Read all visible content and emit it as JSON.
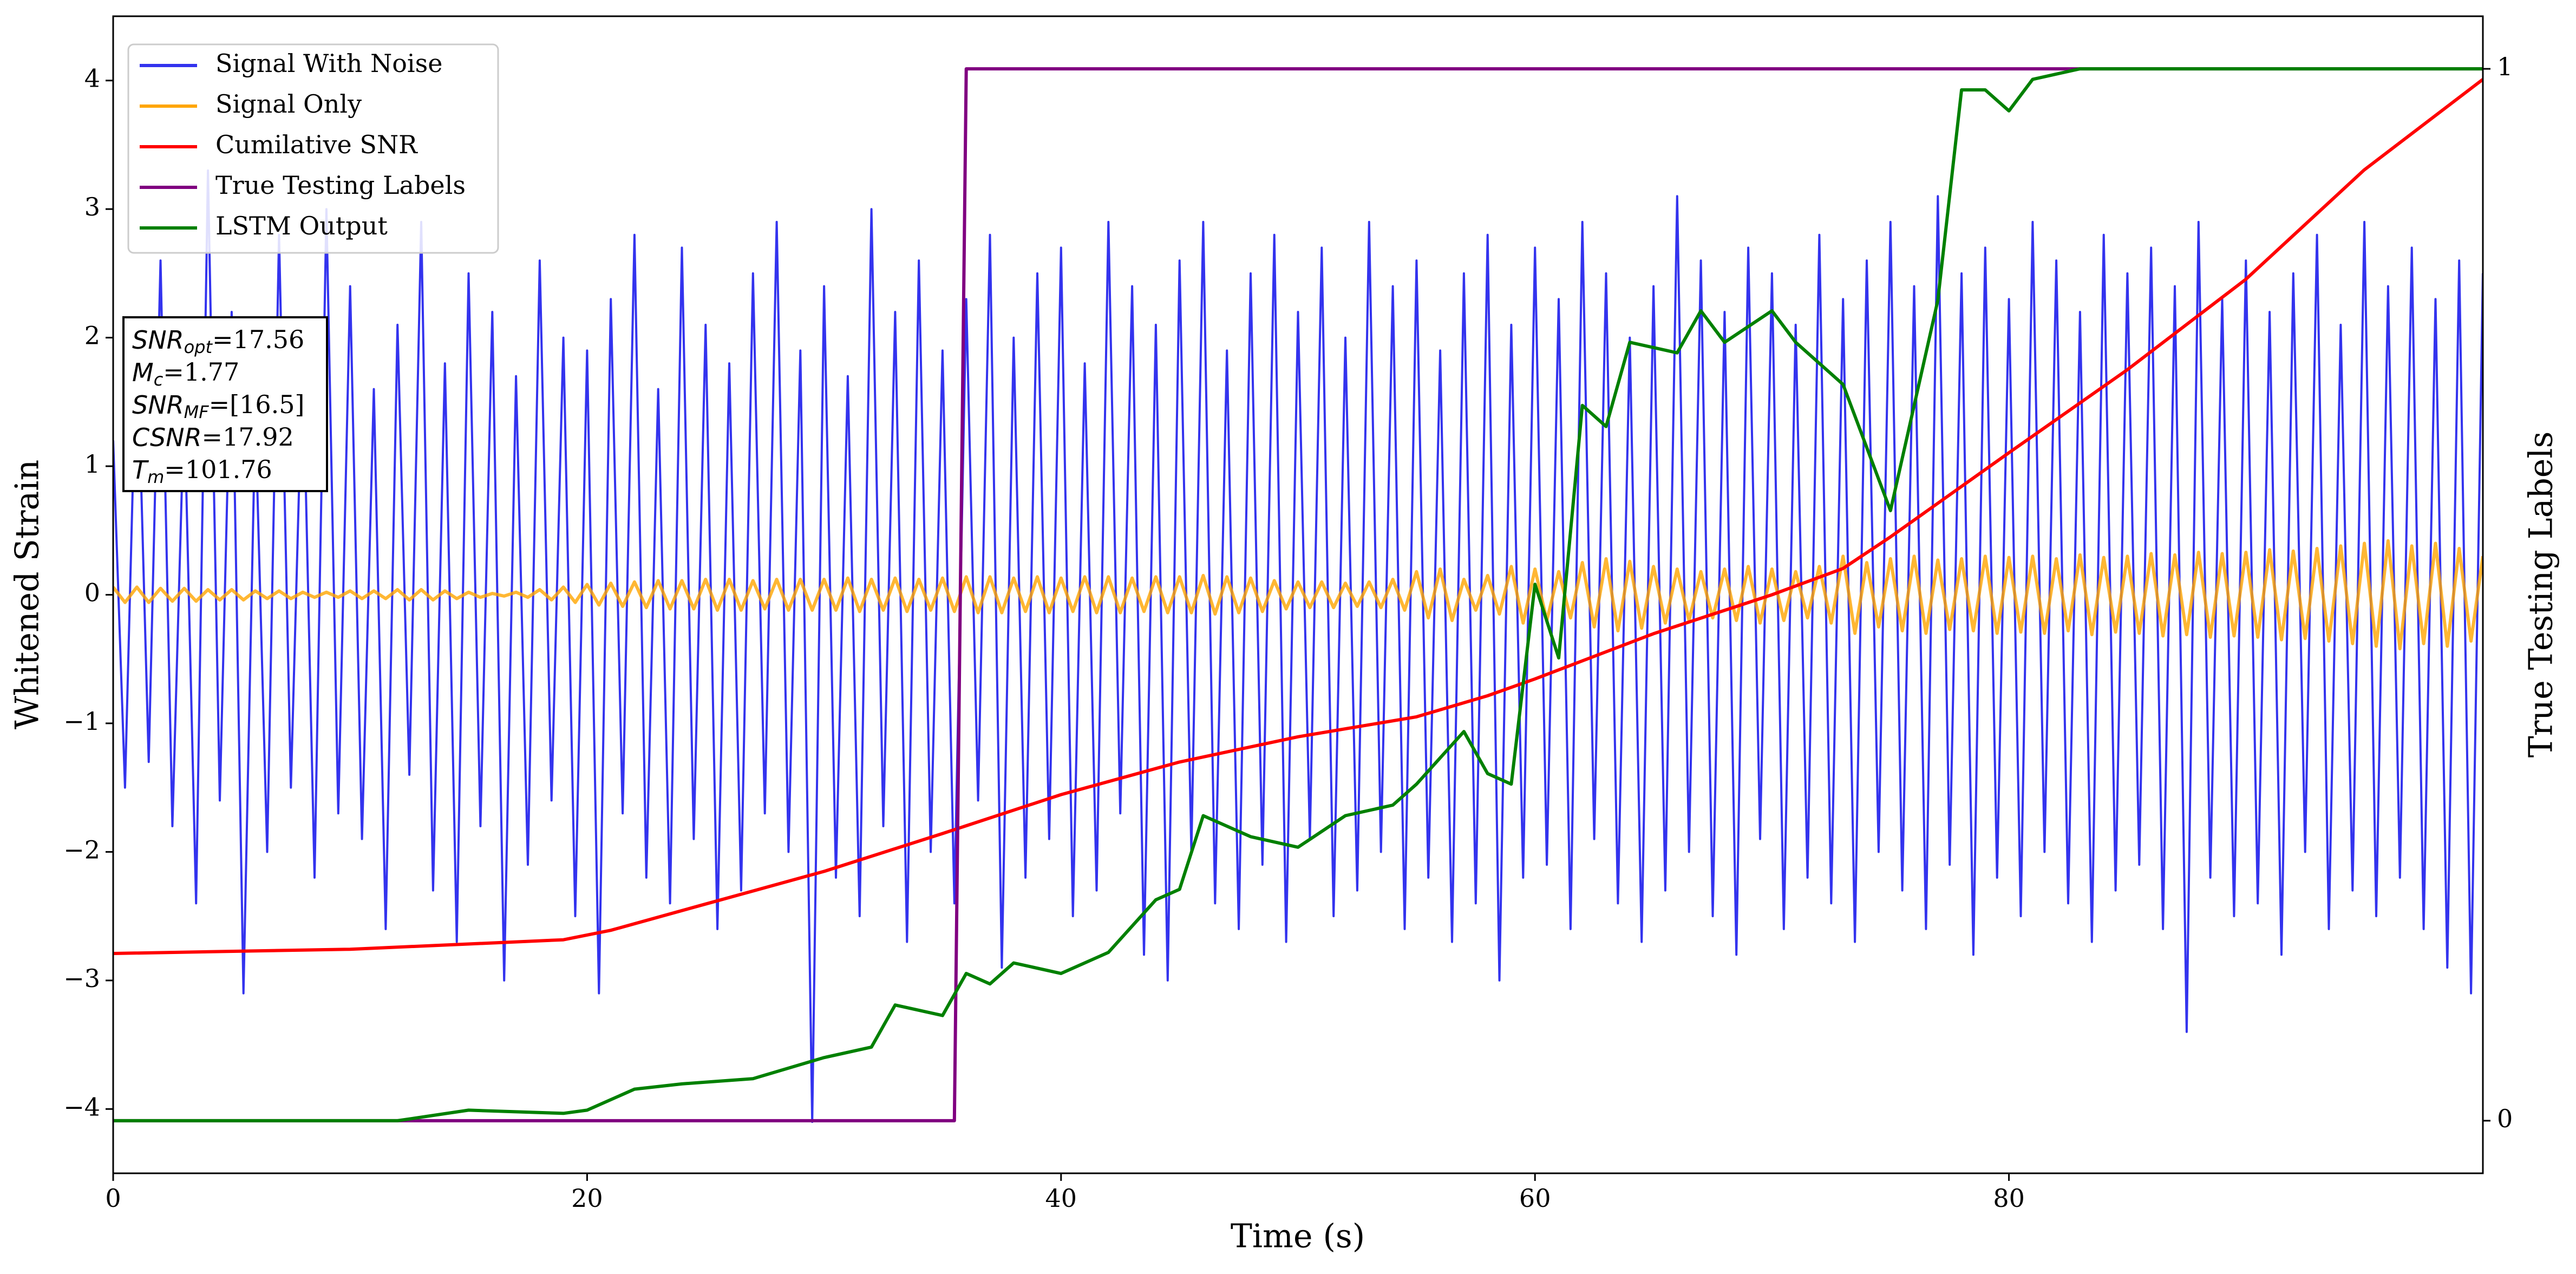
{
  "chart_data": {
    "type": "line",
    "xlabel": "Time (s)",
    "ylabel": "Whitened Strain",
    "y2label": "True Testing Labels",
    "xlim": [
      0,
      100
    ],
    "ylim": [
      -4.5,
      4.5
    ],
    "y2lim": [
      -0.05,
      1.05
    ],
    "xticks": [
      0,
      20,
      40,
      60,
      80
    ],
    "yticks": [
      {
        "value": -4,
        "label": "−4"
      },
      {
        "value": -3,
        "label": "−3"
      },
      {
        "value": -2,
        "label": "−2"
      },
      {
        "value": -1,
        "label": "−1"
      },
      0,
      1,
      2,
      3,
      4
    ],
    "y2ticks": [
      0,
      1
    ],
    "legend": "upper left",
    "x": [
      0,
      0.5,
      1,
      1.5,
      2,
      2.5,
      3,
      3.5,
      4,
      4.5,
      5,
      5.5,
      6,
      6.5,
      7,
      7.5,
      8,
      8.5,
      9,
      9.5,
      10,
      10.5,
      11,
      11.5,
      12,
      12.5,
      13,
      13.5,
      14,
      14.5,
      15,
      15.5,
      16,
      16.5,
      17,
      17.5,
      18,
      18.5,
      19,
      19.5,
      20,
      20.5,
      21,
      21.5,
      22,
      22.5,
      23,
      23.5,
      24,
      24.5,
      25,
      25.5,
      26,
      26.5,
      27,
      27.5,
      28,
      28.5,
      29,
      29.5,
      30,
      30.5,
      31,
      31.5,
      32,
      32.5,
      33,
      33.5,
      34,
      34.5,
      35,
      35.5,
      36,
      36.5,
      37,
      37.5,
      38,
      38.5,
      39,
      39.5,
      40,
      40.5,
      41,
      41.5,
      42,
      42.5,
      43,
      43.5,
      44,
      44.5,
      45,
      45.5,
      46,
      46.5,
      47,
      47.5,
      48,
      48.5,
      49,
      49.5,
      50,
      50.5,
      51,
      51.5,
      52,
      52.5,
      53,
      53.5,
      54,
      54.5,
      55,
      55.5,
      56,
      56.5,
      57,
      57.5,
      58,
      58.5,
      59,
      59.5,
      60,
      60.5,
      61,
      61.5,
      62,
      62.5,
      63,
      63.5,
      64,
      64.5,
      65,
      65.5,
      66,
      66.5,
      67,
      67.5,
      68,
      68.5,
      69,
      69.5,
      70,
      70.5,
      71,
      71.5,
      72,
      72.5,
      73,
      73.5,
      74,
      74.5,
      75,
      75.5,
      76,
      76.5,
      77,
      77.5,
      78,
      78.5,
      79,
      79.5,
      80,
      80.5,
      81,
      81.5,
      82,
      82.5,
      83,
      83.5,
      84,
      84.5,
      85,
      85.5,
      86,
      86.5,
      87,
      87.5,
      88,
      88.5,
      89,
      89.5,
      90,
      90.5,
      91,
      91.5,
      92,
      92.5,
      93,
      93.5,
      94,
      94.5,
      95,
      95.5,
      96,
      96.5,
      97,
      97.5,
      98,
      98.5,
      99,
      99.5,
      100
    ],
    "series": [
      {
        "name": "Signal With Noise",
        "color": "#3333ee",
        "values": [
          1.2,
          -1.5,
          2.1,
          -1.3,
          2.6,
          -1.8,
          1.5,
          -2.4,
          3.3,
          -1.6,
          2.2,
          -3.1,
          1.4,
          -2.0,
          2.8,
          -1.5,
          1.9,
          -2.2,
          3.0,
          -1.7,
          2.4,
          -1.9,
          1.6,
          -2.6,
          2.1,
          -1.4,
          2.9,
          -2.3,
          1.8,
          -2.7,
          2.5,
          -1.8,
          2.2,
          -3.0,
          1.7,
          -2.1,
          2.6,
          -1.6,
          2.0,
          -2.5,
          1.9,
          -3.1,
          2.3,
          -1.7,
          2.8,
          -2.2,
          1.6,
          -2.4,
          2.7,
          -1.9,
          2.1,
          -2.6,
          1.8,
          -2.3,
          2.5,
          -1.7,
          2.9,
          -2.0,
          1.9,
          -4.1,
          2.4,
          -2.2,
          1.7,
          -2.5,
          3.0,
          -1.8,
          2.2,
          -2.7,
          2.6,
          -2.0,
          1.9,
          -2.4,
          2.3,
          -1.6,
          2.8,
          -2.9,
          2.0,
          -2.2,
          2.5,
          -1.9,
          2.7,
          -2.5,
          1.8,
          -2.3,
          2.9,
          -1.7,
          2.4,
          -2.8,
          2.1,
          -3.0,
          2.6,
          -2.0,
          2.9,
          -2.4,
          1.9,
          -2.6,
          2.5,
          -2.1,
          2.8,
          -2.7,
          2.2,
          -1.9,
          2.7,
          -2.5,
          2.0,
          -2.3,
          2.9,
          -2.0,
          2.4,
          -2.6,
          2.6,
          -2.2,
          1.9,
          -2.7,
          2.5,
          -2.4,
          2.8,
          -3.0,
          2.1,
          -2.2,
          2.7,
          -2.1,
          2.3,
          -2.6,
          2.9,
          -1.9,
          2.5,
          -2.4,
          2.0,
          -2.7,
          2.4,
          -2.3,
          3.1,
          -2.0,
          2.6,
          -2.5,
          2.2,
          -2.8,
          2.7,
          -1.9,
          2.5,
          -2.6,
          2.1,
          -2.2,
          2.8,
          -2.4,
          2.3,
          -2.7,
          2.6,
          -2.0,
          2.9,
          -2.3,
          2.4,
          -2.6,
          3.1,
          -2.1,
          2.5,
          -2.8,
          2.7,
          -2.2,
          2.3,
          -2.5,
          2.9,
          -2.0,
          2.6,
          -2.4,
          2.2,
          -2.7,
          2.8,
          -2.3,
          2.5,
          -2.1,
          2.7,
          -2.6,
          2.4,
          -3.4,
          2.9,
          -2.2,
          2.3,
          -2.5,
          2.6,
          -2.4,
          2.2,
          -2.8,
          2.5,
          -2.0,
          2.8,
          -2.6,
          2.1,
          -2.3,
          2.9,
          -2.5,
          2.4,
          -2.2,
          2.7,
          -2.6,
          2.3,
          -2.9,
          2.6,
          -3.1,
          2.5
        ]
      },
      {
        "name": "Signal Only",
        "color": "#ffa500",
        "values": [
          0.06,
          -0.06,
          0.06,
          -0.06,
          0.05,
          -0.05,
          0.05,
          -0.05,
          0.04,
          -0.04,
          0.04,
          -0.04,
          0.03,
          -0.03,
          0.03,
          -0.03,
          0.02,
          -0.02,
          0.02,
          -0.02,
          0.03,
          -0.03,
          0.03,
          -0.03,
          0.04,
          -0.04,
          0.04,
          -0.04,
          0.03,
          -0.03,
          0.02,
          -0.02,
          0.01,
          -0.01,
          0.02,
          -0.02,
          0.04,
          -0.04,
          0.06,
          -0.06,
          0.08,
          -0.08,
          0.09,
          -0.09,
          0.1,
          -0.1,
          0.11,
          -0.11,
          0.11,
          -0.11,
          0.12,
          -0.12,
          0.12,
          -0.12,
          0.11,
          -0.11,
          0.12,
          -0.12,
          0.12,
          -0.12,
          0.12,
          -0.12,
          0.13,
          -0.13,
          0.12,
          -0.12,
          0.13,
          -0.13,
          0.12,
          -0.12,
          0.13,
          -0.13,
          0.14,
          -0.14,
          0.14,
          -0.14,
          0.13,
          -0.13,
          0.14,
          -0.14,
          0.13,
          -0.13,
          0.14,
          -0.14,
          0.14,
          -0.14,
          0.13,
          -0.13,
          0.14,
          -0.14,
          0.14,
          -0.14,
          0.15,
          -0.15,
          0.14,
          -0.14,
          0.13,
          -0.13,
          0.11,
          -0.11,
          0.1,
          -0.1,
          0.1,
          -0.1,
          0.09,
          -0.09,
          0.1,
          -0.1,
          0.12,
          -0.12,
          0.18,
          -0.18,
          0.2,
          -0.2,
          0.12,
          -0.12,
          0.15,
          -0.15,
          0.22,
          -0.22,
          0.2,
          -0.2,
          0.18,
          -0.18,
          0.25,
          -0.25,
          0.28,
          -0.28,
          0.26,
          -0.26,
          0.22,
          -0.22,
          0.2,
          -0.2,
          0.18,
          -0.18,
          0.2,
          -0.2,
          0.22,
          -0.22,
          0.2,
          -0.2,
          0.18,
          -0.18,
          0.22,
          -0.22,
          0.3,
          -0.3,
          0.25,
          -0.25,
          0.28,
          -0.28,
          0.3,
          -0.3,
          0.27,
          -0.27,
          0.28,
          -0.28,
          0.3,
          -0.3,
          0.29,
          -0.29,
          0.3,
          -0.3,
          0.28,
          -0.28,
          0.31,
          -0.31,
          0.29,
          -0.29,
          0.3,
          -0.3,
          0.32,
          -0.32,
          0.31,
          -0.31,
          0.33,
          -0.33,
          0.32,
          -0.32,
          0.33,
          -0.33,
          0.35,
          -0.35,
          0.34,
          -0.34,
          0.36,
          -0.36,
          0.38,
          -0.38,
          0.4,
          -0.4,
          0.42,
          -0.42,
          0.38,
          -0.38,
          0.4,
          -0.4,
          0.36,
          -0.36,
          0.3
        ]
      },
      {
        "name": "Cumilative SNR",
        "color": "#ff0000",
        "axis": "y2",
        "x": [
          0,
          10,
          15,
          19,
          21,
          25,
          30,
          35,
          40,
          45,
          50,
          55,
          58,
          60,
          65,
          70,
          73,
          75,
          80,
          85,
          90,
          95,
          100
        ],
        "values": [
          0.159,
          0.163,
          0.168,
          0.172,
          0.181,
          0.206,
          0.237,
          0.273,
          0.31,
          0.341,
          0.365,
          0.384,
          0.404,
          0.42,
          0.463,
          0.5,
          0.525,
          0.555,
          0.635,
          0.714,
          0.8,
          0.904,
          0.99
        ]
      },
      {
        "name": "True Testing Labels",
        "color": "#800080",
        "axis": "y2",
        "x": [
          0,
          35.5,
          36,
          100
        ],
        "values": [
          0,
          0,
          1,
          1
        ]
      },
      {
        "name": "LSTM Output",
        "color": "#008000",
        "axis": "y2",
        "x": [
          0,
          12,
          15,
          19,
          20,
          22,
          24,
          27,
          30,
          32,
          33,
          35,
          36,
          37,
          38,
          40,
          42,
          44,
          45,
          46,
          48,
          50,
          52,
          54,
          55,
          57,
          58,
          59,
          60,
          61,
          62,
          63,
          64,
          66,
          67,
          68,
          70,
          71,
          73,
          75,
          77,
          78,
          79,
          80,
          81,
          83,
          100
        ],
        "values": [
          0,
          0,
          0.01,
          0.007,
          0.01,
          0.03,
          0.035,
          0.04,
          0.06,
          0.07,
          0.11,
          0.1,
          0.14,
          0.13,
          0.15,
          0.14,
          0.16,
          0.21,
          0.22,
          0.29,
          0.27,
          0.26,
          0.29,
          0.3,
          0.32,
          0.37,
          0.33,
          0.32,
          0.51,
          0.44,
          0.68,
          0.66,
          0.74,
          0.73,
          0.77,
          0.74,
          0.77,
          0.74,
          0.7,
          0.58,
          0.78,
          0.98,
          0.98,
          0.96,
          0.99,
          1.0,
          1.0
        ]
      }
    ],
    "annotation": [
      {
        "main": "SNR",
        "sub": "opt",
        "rest": "=17.56"
      },
      {
        "main": "M",
        "sub": "c",
        "rest": "=1.77"
      },
      {
        "main": "SNR",
        "sub": "MF",
        "rest": "=[16.5]"
      },
      {
        "main": "CSNR",
        "rest": "=17.92"
      },
      {
        "main": "T",
        "sub": "m",
        "rest": "=101.76"
      }
    ]
  }
}
